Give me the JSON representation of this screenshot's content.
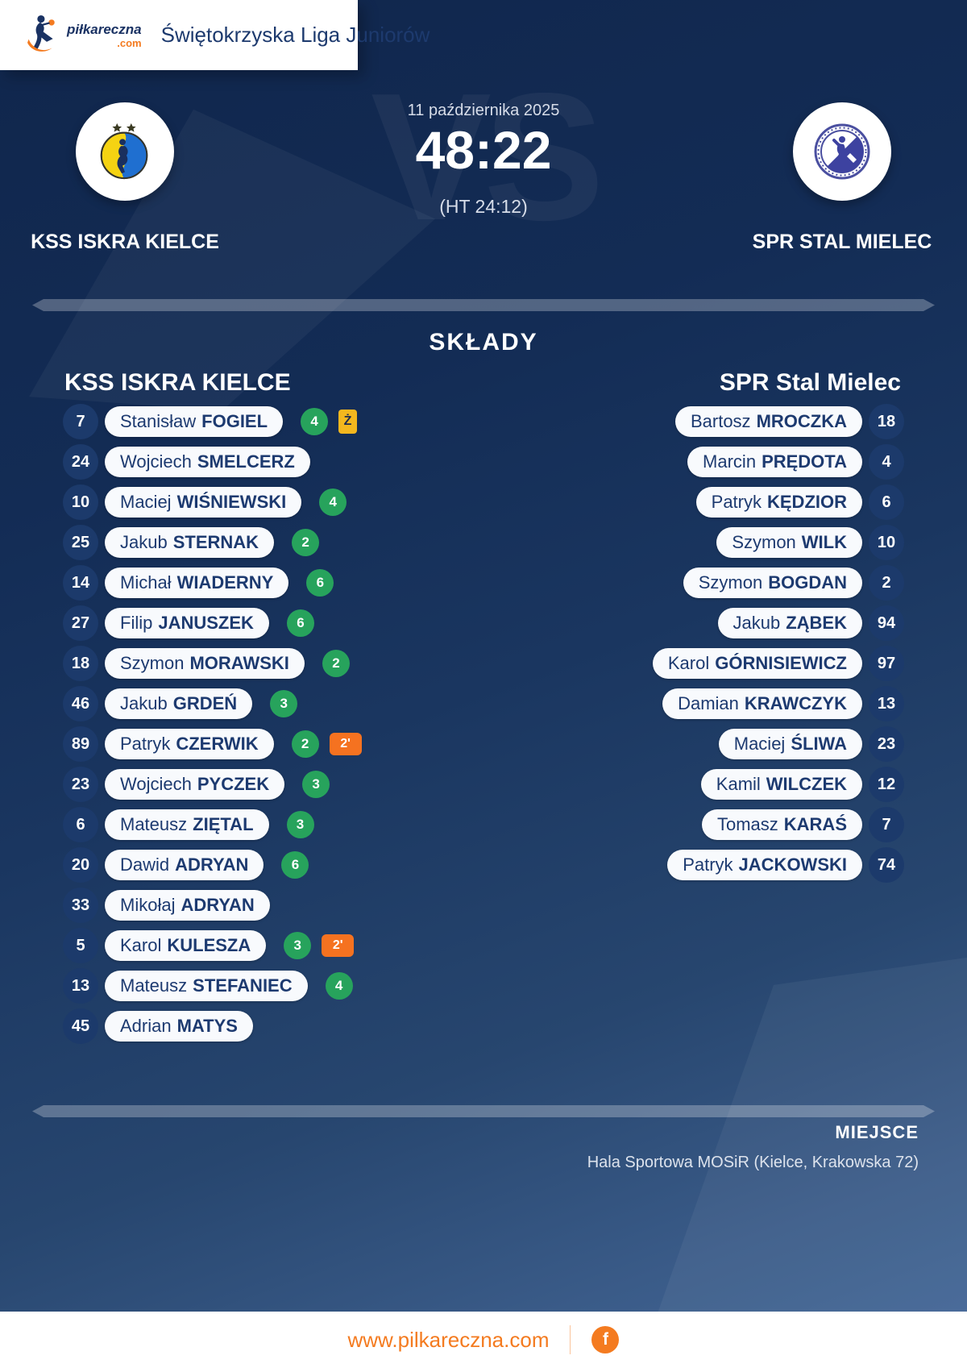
{
  "brand": {
    "logo_word": "piłkareczna",
    "logo_tld": ".com",
    "league_title": "Świętokrzyska Liga Juniorów"
  },
  "match": {
    "date": "11 października 2025",
    "score": "48:22",
    "halftime": "(HT 24:12)",
    "vs_watermark": "VS"
  },
  "sections": {
    "lineups_title": "SKŁADY",
    "venue_title": "MIEJSCE",
    "venue_name": "Hala Sportowa MOSiR (Kielce, Krakowska 72)"
  },
  "badges": {
    "yellow_label": "Ż",
    "two_min_label": "2'"
  },
  "teams": {
    "home": {
      "name": "KSS ISKRA KIELCE",
      "roster_title": "KSS ISKRA KIELCE",
      "players": [
        {
          "number": 7,
          "first": "Stanisław",
          "last": "FOGIEL",
          "goals": 4,
          "yellow_card": true,
          "two_minutes": false
        },
        {
          "number": 24,
          "first": "Wojciech",
          "last": "SMELCERZ",
          "goals": null,
          "yellow_card": false,
          "two_minutes": false
        },
        {
          "number": 10,
          "first": "Maciej",
          "last": "WIŚNIEWSKI",
          "goals": 4,
          "yellow_card": false,
          "two_minutes": false
        },
        {
          "number": 25,
          "first": "Jakub",
          "last": "STERNAK",
          "goals": 2,
          "yellow_card": false,
          "two_minutes": false
        },
        {
          "number": 14,
          "first": "Michał",
          "last": "WIADERNY",
          "goals": 6,
          "yellow_card": false,
          "two_minutes": false
        },
        {
          "number": 27,
          "first": "Filip",
          "last": "JANUSZEK",
          "goals": 6,
          "yellow_card": false,
          "two_minutes": false
        },
        {
          "number": 18,
          "first": "Szymon",
          "last": "MORAWSKI",
          "goals": 2,
          "yellow_card": false,
          "two_minutes": false
        },
        {
          "number": 46,
          "first": "Jakub",
          "last": "GRDEŃ",
          "goals": 3,
          "yellow_card": false,
          "two_minutes": false
        },
        {
          "number": 89,
          "first": "Patryk",
          "last": "CZERWIK",
          "goals": 2,
          "yellow_card": false,
          "two_minutes": true
        },
        {
          "number": 23,
          "first": "Wojciech",
          "last": "PYCZEK",
          "goals": 3,
          "yellow_card": false,
          "two_minutes": false
        },
        {
          "number": 6,
          "first": "Mateusz",
          "last": "ZIĘTAL",
          "goals": 3,
          "yellow_card": false,
          "two_minutes": false
        },
        {
          "number": 20,
          "first": "Dawid",
          "last": "ADRYAN",
          "goals": 6,
          "yellow_card": false,
          "two_minutes": false
        },
        {
          "number": 33,
          "first": "Mikołaj",
          "last": "ADRYAN",
          "goals": null,
          "yellow_card": false,
          "two_minutes": false
        },
        {
          "number": 5,
          "first": "Karol",
          "last": "KULESZA",
          "goals": 3,
          "yellow_card": false,
          "two_minutes": true
        },
        {
          "number": 13,
          "first": "Mateusz",
          "last": "STEFANIEC",
          "goals": 4,
          "yellow_card": false,
          "two_minutes": false
        },
        {
          "number": 45,
          "first": "Adrian",
          "last": "MATYS",
          "goals": null,
          "yellow_card": false,
          "two_minutes": false
        }
      ]
    },
    "away": {
      "name": "SPR STAL MIELEC",
      "roster_title": "SPR Stal Mielec",
      "players": [
        {
          "number": 18,
          "first": "Bartosz",
          "last": "MROCZKA",
          "goals": null,
          "yellow_card": false,
          "two_minutes": false
        },
        {
          "number": 4,
          "first": "Marcin",
          "last": "PRĘDOTA",
          "goals": null,
          "yellow_card": false,
          "two_minutes": false
        },
        {
          "number": 6,
          "first": "Patryk",
          "last": "KĘDZIOR",
          "goals": null,
          "yellow_card": false,
          "two_minutes": false
        },
        {
          "number": 10,
          "first": "Szymon",
          "last": "WILK",
          "goals": null,
          "yellow_card": false,
          "two_minutes": false
        },
        {
          "number": 2,
          "first": "Szymon",
          "last": "BOGDAN",
          "goals": null,
          "yellow_card": false,
          "two_minutes": false
        },
        {
          "number": 94,
          "first": "Jakub",
          "last": "ZĄBEK",
          "goals": null,
          "yellow_card": false,
          "two_minutes": false
        },
        {
          "number": 97,
          "first": "Karol",
          "last": "GÓRNISIEWICZ",
          "goals": null,
          "yellow_card": false,
          "two_minutes": false
        },
        {
          "number": 13,
          "first": "Damian",
          "last": "KRAWCZYK",
          "goals": null,
          "yellow_card": false,
          "two_minutes": false
        },
        {
          "number": 23,
          "first": "Maciej",
          "last": "ŚLIWA",
          "goals": null,
          "yellow_card": false,
          "two_minutes": false
        },
        {
          "number": 12,
          "first": "Kamil",
          "last": "WILCZEK",
          "goals": null,
          "yellow_card": false,
          "two_minutes": false
        },
        {
          "number": 7,
          "first": "Tomasz",
          "last": "KARAŚ",
          "goals": null,
          "yellow_card": false,
          "two_minutes": false
        },
        {
          "number": 74,
          "first": "Patryk",
          "last": "JACKOWSKI",
          "goals": null,
          "yellow_card": false,
          "two_minutes": false
        }
      ]
    }
  },
  "footer": {
    "site_url": "www.pilkareczna.com",
    "facebook_label": "f"
  },
  "colors": {
    "background_navy": "#132c55",
    "background_steel": "#3f6090",
    "accent_orange": "#f47b20",
    "goal_green": "#27a35c",
    "card_yellow": "#f4b71e",
    "suspension_orange": "#f57220",
    "pill_white": "#f8fafd",
    "text_navy": "#1d3a70"
  }
}
